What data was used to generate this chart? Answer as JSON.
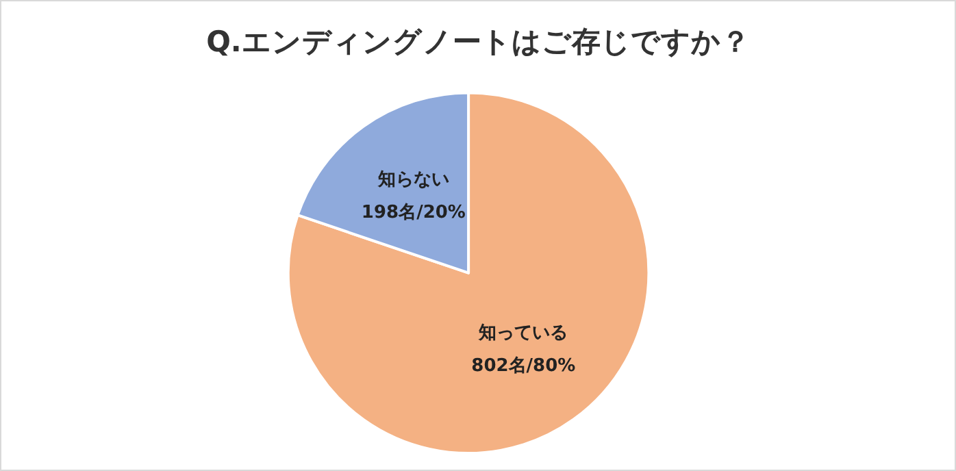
{
  "chart_data": {
    "type": "pie",
    "title": "Q.エンディングノートはご存じですか？",
    "categories": [
      "知っている",
      "知らない"
    ],
    "values": [
      802,
      198
    ],
    "colors": [
      "#f4b183",
      "#8faadc"
    ],
    "value_labels": [
      "802名/80%",
      "198名/20%"
    ],
    "legend": false
  }
}
